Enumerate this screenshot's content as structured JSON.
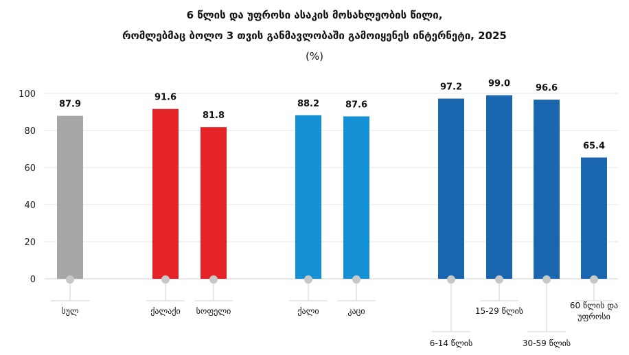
{
  "title_line1": "6 წლის და უფროსი ასაკის მოსახლეობის წილი,",
  "title_line2": "რომლებმაც ბოლო 3 თვის განმავლობაში გამოიყენეს ინტერნეტი, 2025",
  "unit": "(%)",
  "chart_data": {
    "type": "bar",
    "title": "6 წლის და უფროსი ასაკის მოსახლეობის წილი, რომლებმაც ბოლო 3 თვის განმავლობაში გამოიყენეს ინტერნეტი, 2025",
    "ylabel": "",
    "xlabel": "",
    "ylim": [
      0,
      100
    ],
    "yticks": [
      0,
      20,
      40,
      60,
      80,
      100
    ],
    "grid": true,
    "legend": "none",
    "categories": [
      "სულ",
      "ქალაქი",
      "სოფელი",
      "ქალი",
      "კაცი",
      "6-14 წლის",
      "15-29 წლის",
      "30-59 წლის",
      "60 წლის და უფროსი"
    ],
    "category_label_lines": [
      [
        "სულ"
      ],
      [
        "ქალაქი"
      ],
      [
        "სოფელი"
      ],
      [
        "ქალი"
      ],
      [
        "კაცი"
      ],
      [
        "6-14 წლის"
      ],
      [
        "15-29 წლის"
      ],
      [
        "30-59 წლის"
      ],
      [
        "60 წლის და",
        "უფროსი"
      ]
    ],
    "values": [
      87.9,
      91.6,
      81.8,
      88.2,
      87.6,
      97.2,
      99.0,
      96.6,
      65.4
    ],
    "value_labels": [
      "87.9",
      "91.6",
      "81.8",
      "88.2",
      "87.6",
      "97.2",
      "99.0",
      "96.6",
      "65.4"
    ],
    "colors": [
      "#a6a7a9",
      "#e52427",
      "#e52427",
      "#1591d3",
      "#1591d3",
      "#1a67b0",
      "#1a67b0",
      "#1a67b0",
      "#1a67b0"
    ],
    "gridline_color": "#e4e4e4",
    "marker_color": "#c8c8c8"
  }
}
